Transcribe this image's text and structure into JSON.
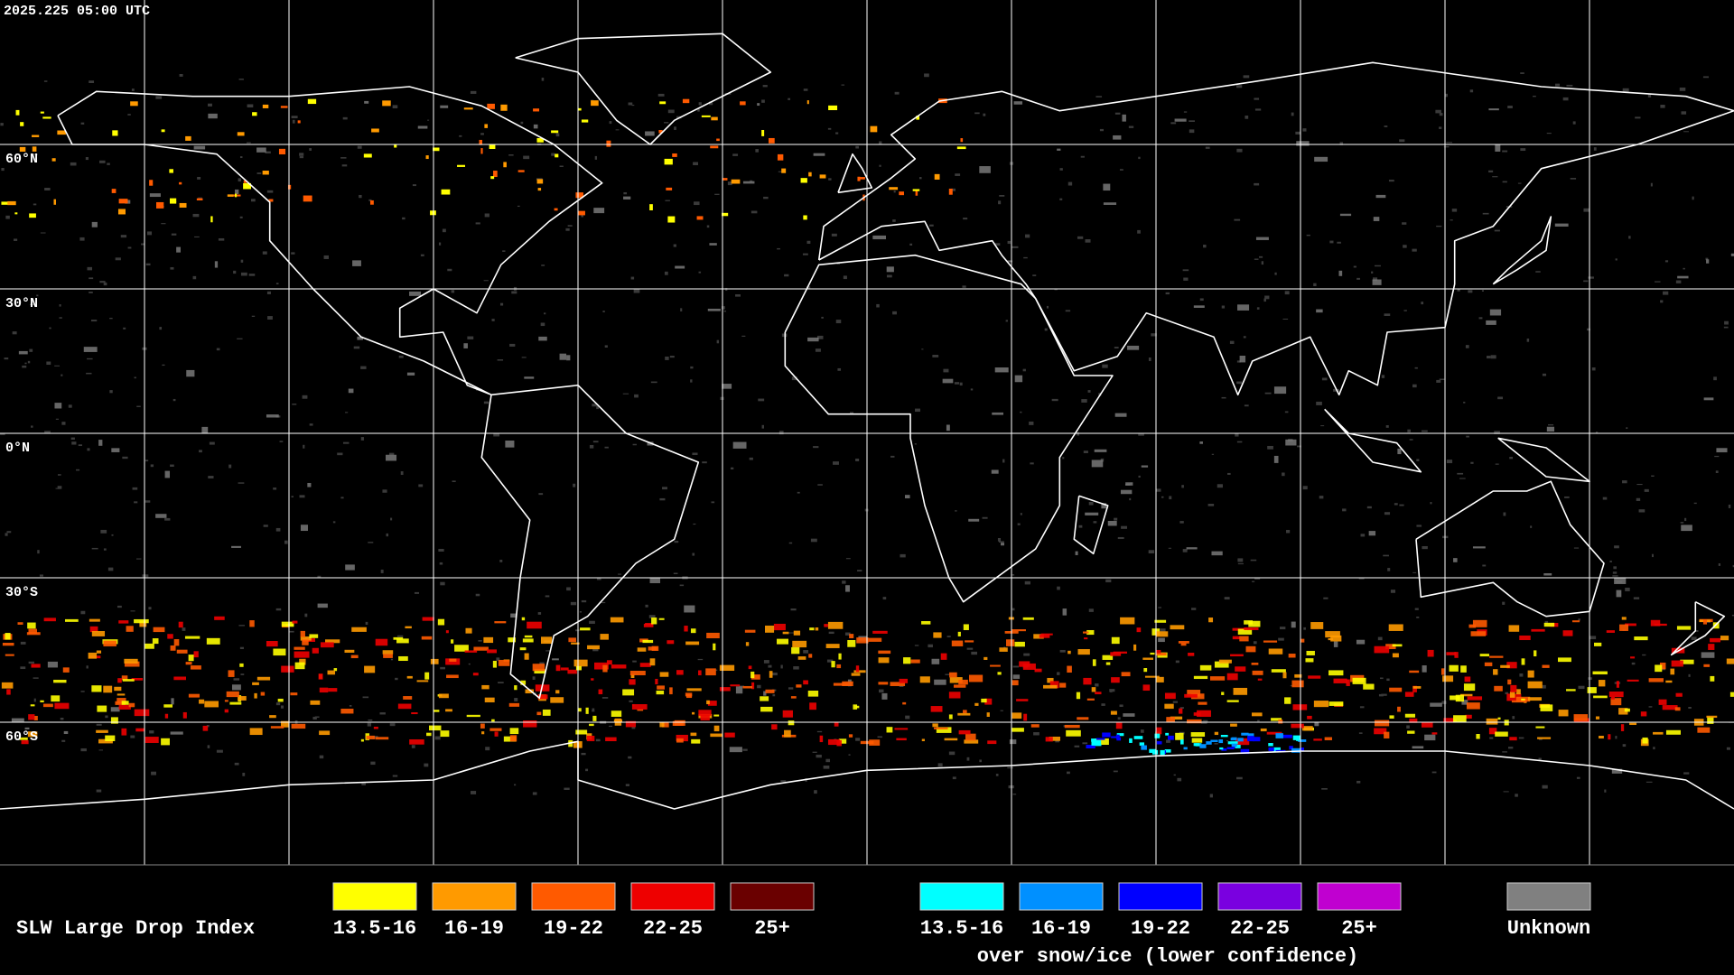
{
  "timestamp": "2025.225 05:00 UTC",
  "latitude_labels": [
    "60°N",
    "30°N",
    "0°N",
    "30°S",
    "60°S"
  ],
  "legend": {
    "title": "SLW Large Drop Index",
    "classes": [
      {
        "label": "13.5-16",
        "color": "#ffff00"
      },
      {
        "label": "16-19",
        "color": "#ff9a00"
      },
      {
        "label": "19-22",
        "color": "#ff5a00"
      },
      {
        "label": "22-25",
        "color": "#ee0000"
      },
      {
        "label": "25+",
        "color": "#6a0000"
      }
    ],
    "snow_ice_classes": [
      {
        "label": "13.5-16",
        "color": "#00ffff"
      },
      {
        "label": "16-19",
        "color": "#0090ff"
      },
      {
        "label": "19-22",
        "color": "#0000ff"
      },
      {
        "label": "22-25",
        "color": "#7a00e0"
      },
      {
        "label": "25+",
        "color": "#c000d0"
      }
    ],
    "snow_ice_note": "over snow/ice (lower confidence)",
    "unknown": {
      "label": "Unknown",
      "color": "#808080"
    }
  }
}
